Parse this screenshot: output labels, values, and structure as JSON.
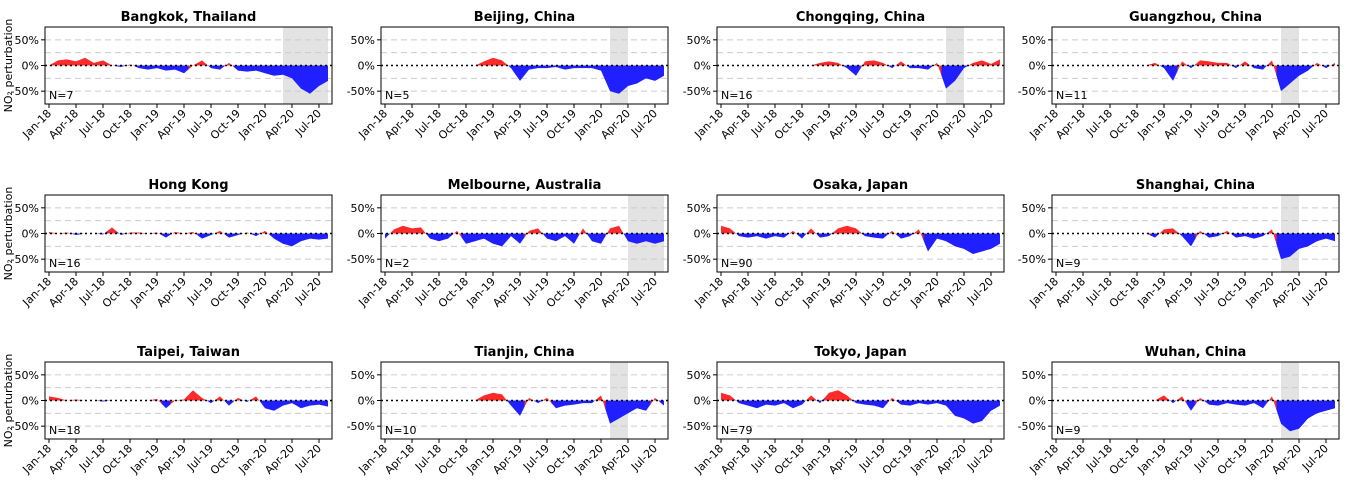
{
  "chart_data": [
    {
      "type": "area",
      "title": "Bangkok, Thailand",
      "ylabel": "NO₂ perturbation",
      "annotation": "N=7",
      "highlight": [
        "2020-03",
        "2020-08"
      ],
      "values": [
        0,
        10,
        12,
        8,
        15,
        5,
        10,
        0,
        -3,
        2,
        -5,
        -8,
        -5,
        -10,
        -8,
        -15,
        0,
        10,
        -5,
        -8,
        5,
        -10,
        -12,
        -10,
        -15,
        -20,
        -18,
        -25,
        -45,
        -55,
        -40,
        -30
      ]
    },
    {
      "type": "area",
      "title": "Beijing, China",
      "annotation": "N=5",
      "highlight": [
        "2020-02",
        "2020-04"
      ],
      "values": [
        0,
        0,
        0,
        0,
        0,
        0,
        0,
        0,
        0,
        0,
        0,
        8,
        15,
        10,
        -5,
        -30,
        -8,
        -5,
        -5,
        -3,
        -8,
        -5,
        -5,
        -5,
        -10,
        -50,
        -55,
        -40,
        -35,
        -25,
        -30,
        -20
      ]
    },
    {
      "type": "area",
      "title": "Chongqing, China",
      "annotation": "N=16",
      "highlight": [
        "2020-02",
        "2020-04"
      ],
      "values": [
        0,
        0,
        0,
        0,
        0,
        0,
        0,
        0,
        0,
        0,
        0,
        5,
        8,
        5,
        -5,
        -20,
        8,
        10,
        5,
        -5,
        8,
        -5,
        -5,
        -8,
        5,
        -45,
        -30,
        -5,
        5,
        10,
        3,
        12
      ]
    },
    {
      "type": "area",
      "title": "Guangzhou, China",
      "annotation": "N=11",
      "highlight": [
        "2020-02",
        "2020-04"
      ],
      "values": [
        0,
        0,
        0,
        0,
        0,
        0,
        0,
        0,
        0,
        0,
        0,
        5,
        -5,
        -30,
        8,
        -5,
        10,
        8,
        5,
        5,
        -5,
        8,
        -5,
        -8,
        10,
        -50,
        -35,
        -20,
        -10,
        5,
        -5,
        5
      ]
    },
    {
      "type": "area",
      "title": "Hong Kong",
      "ylabel": "NO₂ perturbation",
      "annotation": "N=16",
      "values": [
        3,
        0,
        2,
        -3,
        0,
        0,
        -2,
        12,
        -3,
        2,
        2,
        0,
        2,
        -8,
        3,
        0,
        3,
        -10,
        -3,
        5,
        -8,
        -3,
        2,
        -5,
        5,
        -10,
        -20,
        -25,
        -15,
        -10,
        -12,
        -10
      ]
    },
    {
      "type": "area",
      "title": "Melbourne, Australia",
      "annotation": "N=2",
      "highlight": [
        "2020-04",
        "2020-08"
      ],
      "values": [
        -10,
        8,
        15,
        10,
        12,
        -10,
        -15,
        -10,
        5,
        -20,
        -15,
        -10,
        -20,
        -25,
        -5,
        -20,
        5,
        10,
        -10,
        -15,
        -5,
        -20,
        10,
        -15,
        -20,
        10,
        15,
        -15,
        -20,
        -15,
        -20,
        -15
      ]
    },
    {
      "type": "area",
      "title": "Osaka, Japan",
      "annotation": "N=90",
      "values": [
        15,
        10,
        -5,
        -8,
        -5,
        -10,
        -5,
        -8,
        5,
        -10,
        10,
        -8,
        -5,
        10,
        15,
        10,
        -5,
        -8,
        -10,
        5,
        -10,
        -5,
        8,
        -35,
        -10,
        -15,
        -25,
        -30,
        -40,
        -35,
        -30,
        -20
      ]
    },
    {
      "type": "area",
      "title": "Shanghai, China",
      "annotation": "N=9",
      "highlight": [
        "2020-02",
        "2020-04"
      ],
      "values": [
        0,
        0,
        0,
        0,
        0,
        0,
        0,
        0,
        0,
        0,
        0,
        -8,
        8,
        10,
        -5,
        -25,
        5,
        -8,
        -5,
        5,
        -8,
        -5,
        -10,
        -5,
        8,
        -50,
        -45,
        -30,
        -25,
        -15,
        -10,
        -15
      ]
    },
    {
      "type": "area",
      "title": "Taipei, Taiwan",
      "ylabel": "NO₂ perturbation",
      "annotation": "N=18",
      "values": [
        8,
        5,
        0,
        2,
        0,
        0,
        -2,
        0,
        0,
        0,
        0,
        0,
        3,
        -15,
        0,
        2,
        20,
        5,
        -5,
        8,
        -10,
        5,
        -3,
        8,
        -15,
        -20,
        -10,
        -5,
        -15,
        -10,
        -8,
        -12
      ]
    },
    {
      "type": "area",
      "title": "Tianjin, China",
      "annotation": "N=10",
      "highlight": [
        "2020-02",
        "2020-04"
      ],
      "values": [
        0,
        0,
        0,
        0,
        0,
        0,
        0,
        0,
        0,
        0,
        0,
        10,
        15,
        12,
        -10,
        -30,
        5,
        -5,
        5,
        -15,
        -10,
        -8,
        -5,
        -5,
        10,
        -45,
        -35,
        -25,
        -15,
        -20,
        5,
        -10
      ]
    },
    {
      "type": "area",
      "title": "Tokyo, Japan",
      "annotation": "N=79",
      "values": [
        15,
        10,
        -5,
        -10,
        -15,
        -8,
        -10,
        -5,
        -15,
        -8,
        10,
        -5,
        15,
        20,
        10,
        -5,
        -8,
        -10,
        -15,
        5,
        -8,
        -10,
        -5,
        -8,
        -5,
        -10,
        -30,
        -35,
        -45,
        -40,
        -20,
        -10
      ]
    },
    {
      "type": "area",
      "title": "Wuhan, China",
      "annotation": "N=9",
      "highlight": [
        "2020-02",
        "2020-04"
      ],
      "values": [
        0,
        0,
        0,
        0,
        0,
        0,
        0,
        0,
        0,
        0,
        0,
        0,
        10,
        -5,
        8,
        -20,
        5,
        -8,
        -10,
        -5,
        -8,
        -10,
        -5,
        -15,
        8,
        -45,
        -60,
        -55,
        -35,
        -25,
        -20,
        -15
      ]
    }
  ],
  "x": [
    "2018-01",
    "2018-02",
    "2018-03",
    "2018-04",
    "2018-05",
    "2018-06",
    "2018-07",
    "2018-08",
    "2018-09",
    "2018-10",
    "2018-11",
    "2018-12",
    "2019-01",
    "2019-02",
    "2019-03",
    "2019-04",
    "2019-05",
    "2019-06",
    "2019-07",
    "2019-08",
    "2019-09",
    "2019-10",
    "2019-11",
    "2019-12",
    "2020-01",
    "2020-02",
    "2020-03",
    "2020-04",
    "2020-05",
    "2020-06",
    "2020-07",
    "2020-08"
  ],
  "xlim": [
    "2018-01",
    "2020-08"
  ],
  "xticks": [
    {
      "value": "2018-01",
      "label": "Jan-18"
    },
    {
      "value": "2018-04",
      "label": "Apr-18"
    },
    {
      "value": "2018-07",
      "label": "Jul-18"
    },
    {
      "value": "2018-10",
      "label": "Oct-18"
    },
    {
      "value": "2019-01",
      "label": "Jan-19"
    },
    {
      "value": "2019-04",
      "label": "Apr-19"
    },
    {
      "value": "2019-07",
      "label": "Jul-19"
    },
    {
      "value": "2019-10",
      "label": "Oct-19"
    },
    {
      "value": "2020-01",
      "label": "Jan-20"
    },
    {
      "value": "2020-04",
      "label": "Apr-20"
    },
    {
      "value": "2020-07",
      "label": "Jul-20"
    }
  ],
  "ylim": [
    -75,
    75
  ],
  "yticks": [
    {
      "value": -50,
      "label": "-50%"
    },
    {
      "value": 0,
      "label": "0%"
    },
    {
      "value": 50,
      "label": "50%"
    }
  ],
  "minor_grid": [
    -50,
    -25,
    25,
    50
  ],
  "positive_color": "#ff2a2a",
  "negative_color": "#1f1fff",
  "highlight_color": "#e3e3e3"
}
